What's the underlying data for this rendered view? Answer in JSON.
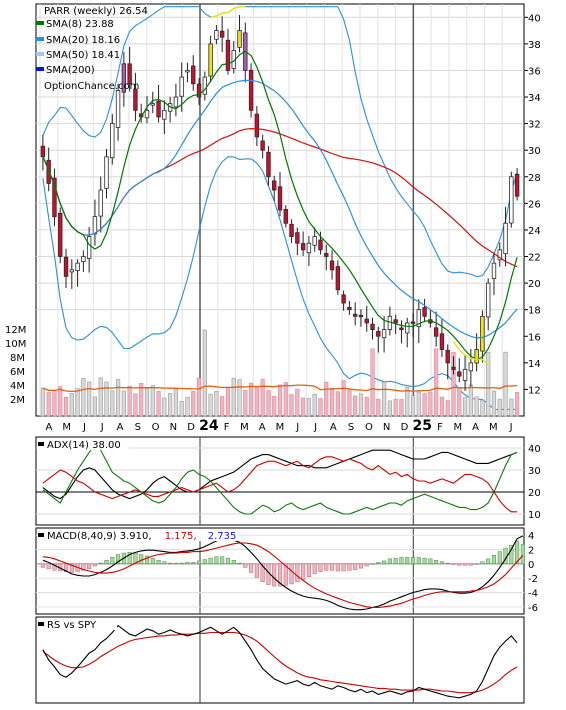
{
  "chart_data": [
    {
      "type": "candlestick",
      "panel": "price",
      "ticker_label": "PARR (weekly) 26.54",
      "watermark": "OptionChance.com",
      "legend": [
        {
          "label": "SMA(8) 23.88",
          "color": "#007700"
        },
        {
          "label": "SMA(20) 18.16",
          "color": "#2d8fd8"
        },
        {
          "label": "SMA(50) 18.41",
          "color": "#9fc9ef"
        },
        {
          "label": "SMA(200)",
          "color": "#0a1ad1"
        }
      ],
      "legend_placement": "top-left",
      "ylim": [
        10,
        41
      ],
      "y_ticks": [
        12,
        14,
        16,
        18,
        20,
        22,
        24,
        26,
        28,
        30,
        32,
        34,
        36,
        38,
        40
      ],
      "x_month_labels": [
        "A",
        "M",
        "J",
        "J",
        "A",
        "S",
        "O",
        "N",
        "D",
        "24",
        "F",
        "M",
        "A",
        "M",
        "J",
        "J",
        "A",
        "S",
        "O",
        "N",
        "D",
        "25",
        "F",
        "M",
        "A",
        "M",
        "J"
      ],
      "closes": [
        29.5,
        27.5,
        25,
        22,
        20.5,
        21,
        21.5,
        22,
        23.5,
        25,
        27,
        29.5,
        32,
        34.5,
        36.5,
        35,
        33,
        32.5,
        33,
        33.5,
        32.5,
        33,
        33.5,
        34,
        35.5,
        36,
        35,
        34,
        35.5,
        38,
        39,
        38.5,
        36,
        37.5,
        39,
        36,
        33,
        31,
        30,
        28,
        27,
        25.5,
        24.5,
        23.5,
        23,
        22.5,
        23,
        23.5,
        22.5,
        22,
        21,
        19.5,
        18.5,
        18,
        17.5,
        17.5,
        17,
        16.5,
        16,
        16.5,
        17.5,
        17,
        16.5,
        17,
        17,
        18,
        17.5,
        17,
        16,
        15,
        14,
        13.5,
        13,
        13.5,
        14,
        15,
        17.5,
        20,
        21.5,
        22.5,
        24.5,
        28,
        26.54
      ],
      "overlays": [
        "SMA(8)",
        "SMA(20)",
        "SMA(50)",
        "SMA(200)",
        "Bollinger Bands"
      ]
    },
    {
      "type": "bar",
      "panel": "volume",
      "y_tick_labels": [
        "12M",
        "10M",
        "8M",
        "6M",
        "4M",
        "2M"
      ],
      "y_ticks": [
        12,
        10,
        8,
        6,
        4,
        2
      ],
      "units": "millions of shares",
      "ylim": [
        0,
        12.8
      ],
      "average_line": "moving average of volume"
    },
    {
      "type": "line",
      "panel": "adx",
      "label": "ADX(14) 38.00",
      "ylim": [
        5,
        45
      ],
      "y_ticks": [
        10,
        20,
        30,
        40
      ],
      "series": [
        {
          "color": "#000000",
          "values": [
            22,
            20,
            18,
            17,
            19,
            23,
            27,
            30,
            31,
            30,
            27,
            24,
            21,
            19,
            18,
            17,
            18,
            19,
            21,
            24,
            26,
            27,
            25,
            23,
            21,
            20,
            20,
            21,
            23,
            25,
            26,
            27,
            28,
            29,
            31,
            33,
            35,
            36,
            37,
            37,
            36,
            35,
            34,
            33,
            32,
            32,
            32,
            31,
            31,
            31,
            32,
            33,
            34,
            35,
            36,
            37,
            38,
            39,
            39,
            39,
            39,
            38,
            37,
            36,
            35,
            35,
            35,
            36,
            37,
            38,
            38,
            37,
            36,
            35,
            34,
            33,
            33,
            33,
            34,
            35,
            36,
            37,
            38
          ]
        },
        {
          "color": "#cc0000",
          "values": [
            24,
            26,
            28,
            30,
            29,
            27,
            25,
            24,
            22,
            20,
            19,
            18,
            17,
            18,
            19,
            20,
            21,
            20,
            19,
            18,
            18,
            19,
            20,
            21,
            22,
            21,
            20,
            21,
            22,
            23,
            24,
            22,
            20,
            21,
            23,
            26,
            29,
            32,
            33,
            34,
            34,
            33,
            32,
            33,
            34,
            32,
            31,
            33,
            35,
            36,
            36,
            35,
            34,
            35,
            34,
            33,
            31,
            30,
            32,
            30,
            28,
            29,
            27,
            28,
            26,
            25,
            25,
            24,
            25,
            26,
            25,
            24,
            26,
            28,
            28,
            27,
            26,
            24,
            20,
            16,
            13,
            11,
            11
          ]
        },
        {
          "color": "#117711",
          "values": [
            21,
            19,
            17,
            15,
            20,
            25,
            30,
            34,
            38,
            42,
            39,
            34,
            29,
            27,
            25,
            24,
            22,
            20,
            18,
            16,
            15,
            16,
            19,
            22,
            26,
            29,
            30,
            28,
            27,
            25,
            22,
            19,
            16,
            13,
            11,
            10,
            10,
            12,
            14,
            13,
            11,
            12,
            14,
            15,
            13,
            12,
            13,
            14,
            15,
            13,
            12,
            11,
            10,
            10,
            11,
            12,
            13,
            12,
            13,
            14,
            15,
            15,
            14,
            16,
            17,
            18,
            19,
            18,
            17,
            16,
            15,
            14,
            13,
            13,
            12,
            12,
            13,
            15,
            20,
            26,
            32,
            37,
            38
          ]
        }
      ]
    },
    {
      "type": "line",
      "panel": "macd",
      "label": "MACD(8,40,9) 3.910,",
      "signal_value": "1.175,",
      "signal_color": "#cc0000",
      "hist_value": "2.735",
      "hist_color": "#0a1ad1",
      "ylim": [
        -7,
        5
      ],
      "y_ticks": [
        4,
        2,
        0,
        -2,
        -4,
        -6
      ],
      "y_tick_labels": [
        "4",
        "2",
        "0",
        "-2",
        "-4",
        "-6"
      ],
      "series": [
        {
          "color": "#000000",
          "values": [
            0.5,
            0.2,
            -0.2,
            -0.6,
            -1,
            -1.4,
            -1.6,
            -1.7,
            -1.7,
            -1.5,
            -1.2,
            -0.8,
            -0.3,
            0.3,
            0.8,
            1.3,
            1.6,
            1.8,
            1.9,
            1.9,
            1.8,
            1.7,
            1.6,
            1.6,
            1.7,
            1.8,
            1.9,
            2.1,
            2.4,
            2.8,
            3.2,
            3.4,
            3.4,
            3.3,
            3,
            2.4,
            1.6,
            0.7,
            -0.3,
            -1.2,
            -2,
            -2.7,
            -3.3,
            -3.8,
            -4.2,
            -4.5,
            -4.7,
            -4.8,
            -4.9,
            -5.1,
            -5.4,
            -5.8,
            -6.1,
            -6.3,
            -6.4,
            -6.4,
            -6.3,
            -6.1,
            -5.9,
            -5.6,
            -5.2,
            -4.9,
            -4.6,
            -4.3,
            -4,
            -3.8,
            -3.6,
            -3.5,
            -3.5,
            -3.6,
            -3.8,
            -4,
            -4.1,
            -4.1,
            -4,
            -3.7,
            -3.2,
            -2.5,
            -1.6,
            -0.5,
            0.7,
            2,
            3.5,
            3.9
          ]
        },
        {
          "color": "#cc0000",
          "values": [
            1,
            0.9,
            0.7,
            0.4,
            0.1,
            -0.2,
            -0.5,
            -0.8,
            -1,
            -1.2,
            -1.3,
            -1.3,
            -1.2,
            -1,
            -0.7,
            -0.3,
            0.1,
            0.5,
            0.8,
            1.1,
            1.3,
            1.4,
            1.5,
            1.5,
            1.6,
            1.6,
            1.7,
            1.7,
            1.8,
            2,
            2.2,
            2.4,
            2.6,
            2.8,
            2.9,
            2.9,
            2.8,
            2.6,
            2.2,
            1.7,
            1.1,
            0.4,
            -0.3,
            -1,
            -1.7,
            -2.3,
            -2.9,
            -3.4,
            -3.8,
            -4.2,
            -4.5,
            -4.8,
            -5.1,
            -5.4,
            -5.6,
            -5.8,
            -6,
            -6.1,
            -6.1,
            -6,
            -5.9,
            -5.7,
            -5.5,
            -5.2,
            -4.9,
            -4.7,
            -4.4,
            -4.2,
            -4,
            -3.9,
            -3.9,
            -3.9,
            -3.9,
            -3.9,
            -3.8,
            -3.7,
            -3.5,
            -3.2,
            -2.8,
            -2.2,
            -1.5,
            -0.6,
            0.3,
            1.175
          ]
        }
      ]
    },
    {
      "type": "line",
      "panel": "relative-strength",
      "label": "RS vs SPY",
      "series": [
        {
          "color": "#000000",
          "values": [
            0.62,
            0.5,
            0.42,
            0.33,
            0.3,
            0.35,
            0.42,
            0.5,
            0.58,
            0.62,
            0.7,
            0.75,
            0.82,
            0.9,
            0.85,
            0.8,
            0.78,
            0.82,
            0.86,
            0.84,
            0.8,
            0.82,
            0.85,
            0.82,
            0.8,
            0.78,
            0.8,
            0.82,
            0.85,
            0.88,
            0.84,
            0.8,
            0.84,
            0.88,
            0.82,
            0.72,
            0.62,
            0.5,
            0.4,
            0.34,
            0.28,
            0.25,
            0.22,
            0.24,
            0.26,
            0.22,
            0.2,
            0.24,
            0.2,
            0.18,
            0.16,
            0.2,
            0.18,
            0.15,
            0.13,
            0.16,
            0.12,
            0.14,
            0.1,
            0.12,
            0.14,
            0.12,
            0.1,
            0.13,
            0.14,
            0.18,
            0.16,
            0.14,
            0.12,
            0.1,
            0.08,
            0.07,
            0.06,
            0.08,
            0.1,
            0.14,
            0.25,
            0.4,
            0.55,
            0.65,
            0.72,
            0.78,
            0.7
          ]
        },
        {
          "color": "#cc0000",
          "values": [
            0.6,
            0.55,
            0.5,
            0.46,
            0.43,
            0.41,
            0.41,
            0.42,
            0.45,
            0.49,
            0.54,
            0.58,
            0.62,
            0.66,
            0.69,
            0.72,
            0.74,
            0.75,
            0.76,
            0.77,
            0.78,
            0.78,
            0.79,
            0.79,
            0.8,
            0.8,
            0.8,
            0.81,
            0.81,
            0.82,
            0.82,
            0.82,
            0.82,
            0.82,
            0.81,
            0.79,
            0.76,
            0.72,
            0.66,
            0.6,
            0.54,
            0.48,
            0.43,
            0.39,
            0.35,
            0.32,
            0.3,
            0.29,
            0.27,
            0.26,
            0.25,
            0.24,
            0.23,
            0.22,
            0.21,
            0.2,
            0.19,
            0.18,
            0.17,
            0.17,
            0.16,
            0.16,
            0.15,
            0.15,
            0.15,
            0.15,
            0.16,
            0.16,
            0.15,
            0.14,
            0.14,
            0.13,
            0.12,
            0.12,
            0.12,
            0.13,
            0.15,
            0.18,
            0.22,
            0.27,
            0.33,
            0.38,
            0.42
          ]
        }
      ]
    }
  ]
}
